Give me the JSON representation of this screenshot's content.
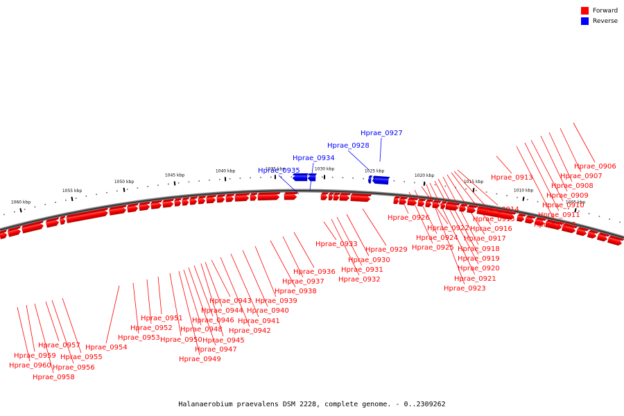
{
  "legend": {
    "forward_label": "Forward",
    "forward_color": "#ff0000",
    "reverse_label": "Reverse",
    "reverse_color": "#0000ff"
  },
  "caption": "Halanaerobium praevalens DSM 2228, complete genome. - 0..2309262",
  "scale": {
    "ticks": [
      "1005 kbp",
      "1010 kbp",
      "1015 kbp",
      "1020 kbp",
      "1025 kbp",
      "1030 kbp",
      "1035 kbp",
      "1040 kbp",
      "1045 kbp",
      "1050 kbp",
      "1055 kbp",
      "1060 kbp"
    ]
  },
  "genes": {
    "forward": [
      "Hprae_0906",
      "Hprae_0907",
      "Hprae_0908",
      "Hprae_0909",
      "Hprae_0910",
      "Hprae_0911",
      "Hprae_0912",
      "Hprae_0913",
      "Hprae_0914",
      "Hprae_0915",
      "Hprae_0916",
      "Hprae_0917",
      "Hprae_0918",
      "Hprae_0919",
      "Hprae_0920",
      "Hprae_0921",
      "Hprae_0922",
      "Hprae_0923",
      "Hprae_0924",
      "Hprae_0925",
      "Hprae_0926",
      "Hprae_0929",
      "Hprae_0930",
      "Hprae_0931",
      "Hprae_0932",
      "Hprae_0933",
      "Hprae_0936",
      "Hprae_0937",
      "Hprae_0938",
      "Hprae_0939",
      "Hprae_0940",
      "Hprae_0941",
      "Hprae_0942",
      "Hprae_0943",
      "Hprae_0944",
      "Hprae_0945",
      "Hprae_0946",
      "Hprae_0947",
      "Hprae_0948",
      "Hprae_0949",
      "Hprae_0950",
      "Hprae_0951",
      "Hprae_0952",
      "Hprae_0953",
      "Hprae_0954",
      "Hprae_0955",
      "Hprae_0956",
      "Hprae_0957",
      "Hprae_0958",
      "Hprae_0959",
      "Hprae_0960"
    ],
    "reverse": [
      "Hprae_0927",
      "Hprae_0928",
      "Hprae_0934",
      "Hprae_0935"
    ]
  }
}
